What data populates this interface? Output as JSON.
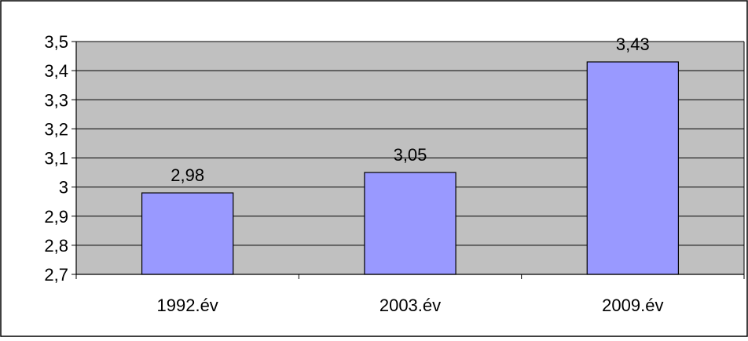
{
  "chart_data": {
    "type": "bar",
    "categories": [
      "1992.év",
      "2003.év",
      "2009.év"
    ],
    "values": [
      2.98,
      3.05,
      3.43
    ],
    "data_labels": [
      "2,98",
      "3,05",
      "3,43"
    ],
    "ylim": [
      2.7,
      3.5
    ],
    "yticks": [
      2.7,
      2.8,
      2.9,
      3.0,
      3.1,
      3.2,
      3.3,
      3.4,
      3.5
    ],
    "ytick_labels": [
      "2,7",
      "2,8",
      "2,9",
      "3",
      "3,1",
      "3,2",
      "3,3",
      "3,4",
      "3,5"
    ],
    "grid": true,
    "legend": "none",
    "colors": {
      "plot_background": "#c0c0c0",
      "bar_fill": "#9999ff",
      "bar_stroke": "#000000",
      "gridline": "#000000",
      "frame": "#000000"
    }
  }
}
